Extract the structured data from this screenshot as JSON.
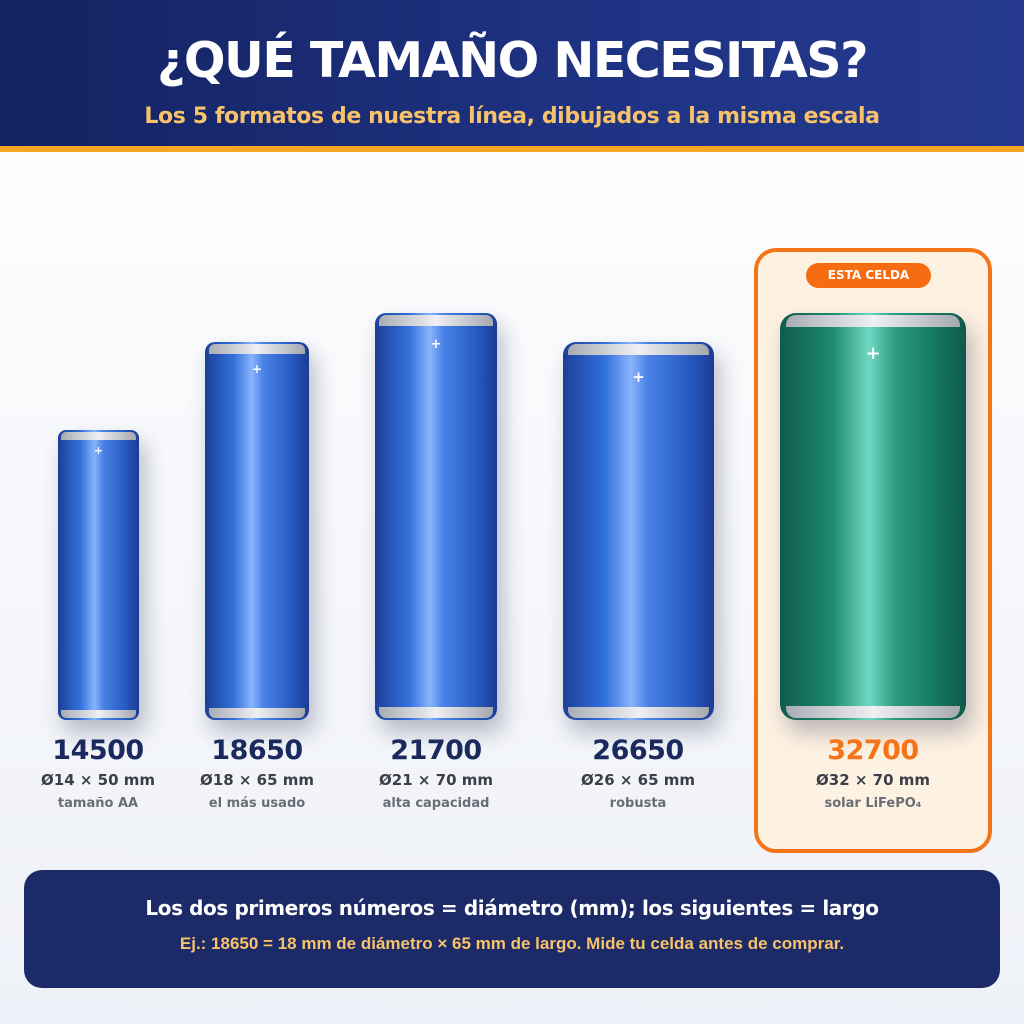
{
  "header": {
    "title": "¿QUÉ TAMAÑO NECESITAS?",
    "subtitle": "Los 5 formatos de nuestra línea, dibujados a la misma escala"
  },
  "highlight_badge": "ESTA CELDA",
  "batteries": [
    {
      "code": "14500",
      "dims": "Ø14 × 50 mm",
      "desc": "tamaño AA",
      "plus": "+",
      "color": "#2f6bd6",
      "featured": false
    },
    {
      "code": "18650",
      "dims": "Ø18 × 65 mm",
      "desc": "el más usado",
      "plus": "+",
      "color": "#2f6bd6",
      "featured": false
    },
    {
      "code": "21700",
      "dims": "Ø21 × 70 mm",
      "desc": "alta capacidad",
      "plus": "+",
      "color": "#2f6bd6",
      "featured": false
    },
    {
      "code": "26650",
      "dims": "Ø26 × 65 mm",
      "desc": "robusta",
      "plus": "+",
      "color": "#2f6bd6",
      "featured": false
    },
    {
      "code": "32700",
      "dims": "Ø32 × 70 mm",
      "desc": "solar LiFePO₄",
      "plus": "+",
      "color": "#1d8a6e",
      "featured": true
    }
  ],
  "info": {
    "main": "Los dos primeros números = diámetro (mm); los siguientes = largo",
    "example": "Ej.: 18650 = 18 mm de diámetro × 65 mm de largo. Mide tu celda antes de comprar."
  },
  "colors": {
    "header_bg": "#1e3282",
    "accent_yellow": "#f5a623",
    "accent_orange": "#f57418",
    "blue_cell": "#2f6bd6",
    "green_cell": "#1d8a6e",
    "info_bg": "#1c2a67"
  }
}
